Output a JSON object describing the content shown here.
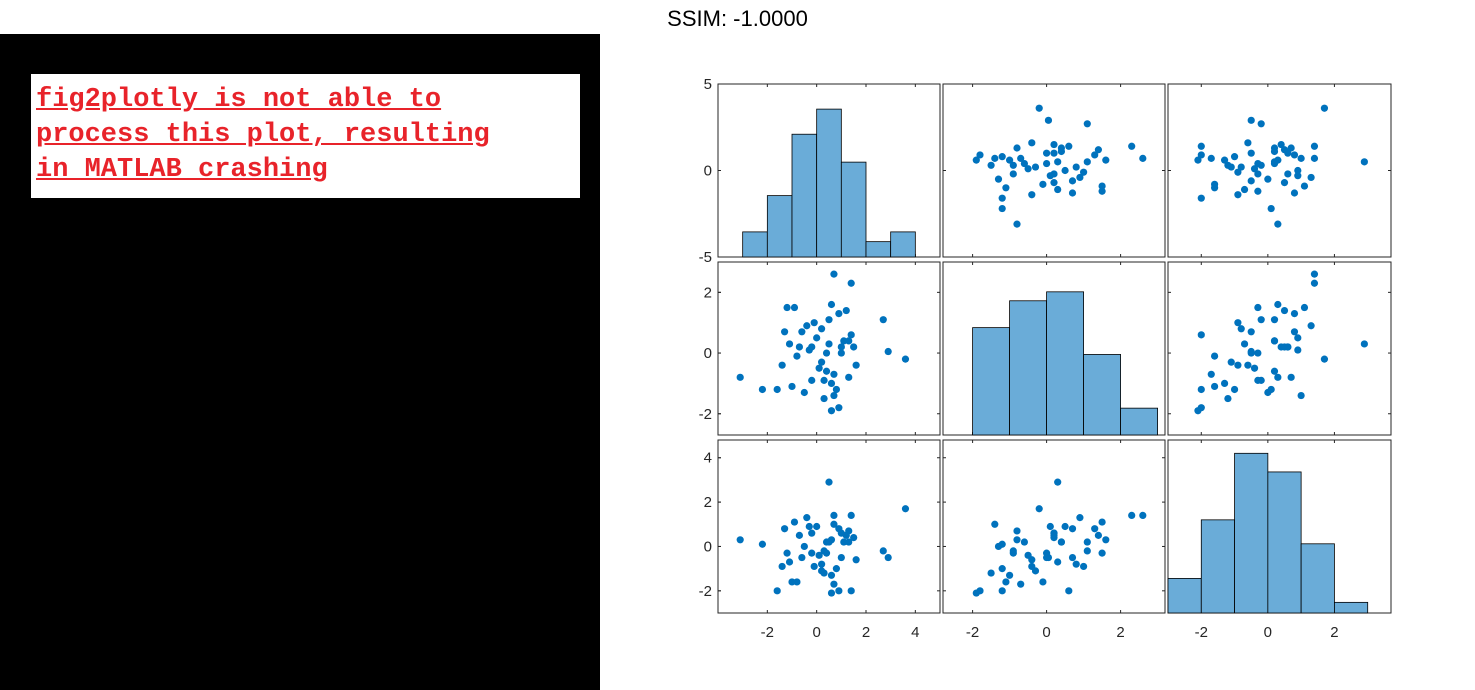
{
  "header": {
    "title": "SSIM: -1.0000"
  },
  "error_panel": {
    "background": "#000000",
    "message": "fig2plotly is not able to\nprocess this plot, resulting\nin MATLAB crashing",
    "text_color": "#e8232a"
  },
  "chart_data": {
    "type": "scatter-matrix",
    "colors": {
      "marker": "#0072bd",
      "bar": "#6aacd8"
    },
    "variables": [
      {
        "xlim": [
          -4,
          5
        ],
        "xticks": [
          -2,
          0,
          2,
          4
        ],
        "ylim": [
          -5,
          5
        ],
        "yticks": [
          5,
          0,
          -5
        ]
      },
      {
        "xlim": [
          -2.8,
          3.2
        ],
        "xticks": [
          -2,
          0,
          2
        ],
        "ylim": [
          -2.7,
          3.0
        ],
        "yticks": [
          2,
          0,
          -2
        ]
      },
      {
        "xlim": [
          -3,
          3.7
        ],
        "xticks": [
          -2,
          0,
          2
        ],
        "ylim": [
          -3.0,
          4.8
        ],
        "yticks": [
          4,
          2,
          0,
          -2
        ]
      }
    ],
    "histograms": [
      {
        "edges": [
          -3,
          -2,
          -1,
          0,
          1,
          2,
          3,
          4
        ],
        "heights": [
          0.9,
          2.2,
          4.4,
          5.3,
          3.4,
          0.55,
          0.9
        ],
        "max": 6.2
      },
      {
        "edges": [
          -2,
          -1,
          0,
          1,
          2,
          3
        ],
        "heights": [
          3.6,
          4.5,
          4.8,
          2.7,
          0.9
        ],
        "max": 5.8
      },
      {
        "edges": [
          -3,
          -2,
          -1,
          0,
          1,
          2,
          3
        ],
        "heights": [
          1.3,
          3.5,
          6.0,
          5.3,
          2.6,
          0.4
        ],
        "max": 6.5
      }
    ],
    "data": {
      "v1": [
        -3.1,
        -2.2,
        -1.6,
        -1.0,
        -0.9,
        0.9,
        1.3,
        2.7,
        3.6,
        -0.2,
        0.2,
        0.6,
        1.4,
        -0.6,
        -0.3,
        0.7,
        1.2,
        0.4,
        -1.4,
        0.8,
        0.5,
        -0.5,
        0.3,
        1.6,
        -1.2,
        0.0,
        0.9,
        -0.8,
        1.1,
        -0.4,
        0.6,
        1.5,
        0.1,
        -1.3,
        0.7,
        0.3,
        -0.1,
        1.0,
        -0.7,
        0.4,
        2.9,
        0.6,
        1.3,
        0.2,
        -1.1,
        0.7,
        1.4,
        0.5,
        -0.2,
        1.0
      ],
      "v2": [
        -0.8,
        -1.2,
        -1.2,
        -1.1,
        1.5,
        1.3,
        0.4,
        1.1,
        -0.2,
        0.2,
        0.8,
        1.6,
        2.3,
        0.7,
        0.1,
        -0.7,
        1.4,
        0.0,
        -0.4,
        -1.2,
        0.3,
        -1.3,
        -1.5,
        -0.4,
        1.5,
        0.5,
        -1.8,
        -0.1,
        0.4,
        0.9,
        -1.9,
        0.2,
        -0.5,
        0.7,
        2.6,
        -0.9,
        1.0,
        0.0,
        0.2,
        -0.6,
        0.05,
        -1.0,
        -0.8,
        -0.3,
        0.3,
        -1.4,
        0.6,
        1.1,
        -0.9,
        0.2
      ],
      "v3": [
        0.3,
        0.1,
        -2.0,
        -1.6,
        1.1,
        0.8,
        0.2,
        -0.2,
        1.7,
        0.6,
        -0.8,
        0.3,
        1.4,
        -0.5,
        0.9,
        -1.7,
        0.5,
        -0.3,
        -0.9,
        -1.0,
        2.9,
        0.0,
        -1.2,
        -0.6,
        -0.3,
        0.9,
        -2.0,
        -1.6,
        0.2,
        1.3,
        -2.1,
        0.4,
        -0.4,
        0.8,
        1.4,
        -0.2,
        -0.9,
        -0.5,
        0.5,
        0.2,
        -0.5,
        -1.3,
        0.7,
        -1.1,
        -0.7,
        1.0,
        -2.0,
        0.2,
        -0.3,
        0.6
      ]
    }
  }
}
